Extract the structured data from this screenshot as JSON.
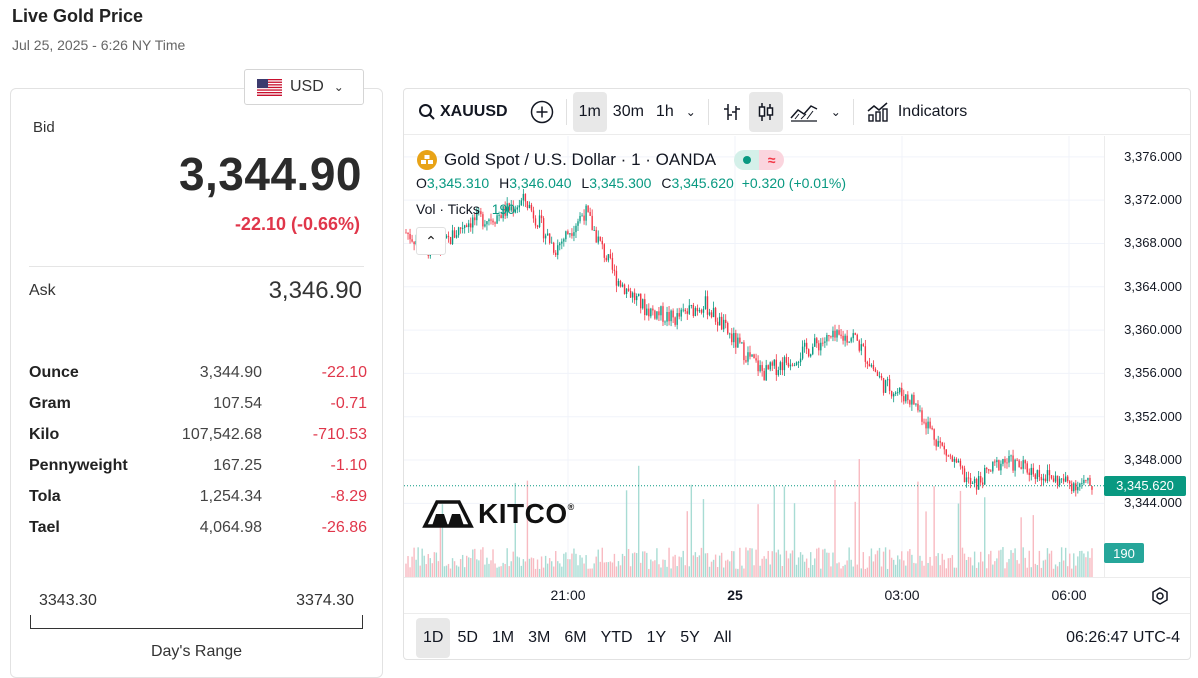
{
  "header": {
    "title": "Live Gold Price",
    "subtitle": "Jul 25, 2025 - 6:26 NY Time"
  },
  "currency": {
    "selected": "USD"
  },
  "price_panel": {
    "bid_label": "Bid",
    "bid_value": "3,344.90",
    "bid_change": "-22.10 (-0.66%)",
    "ask_label": "Ask",
    "ask_value": "3,346.90",
    "units": [
      {
        "name": "Ounce",
        "price": "3,344.90",
        "change": "-22.10"
      },
      {
        "name": "Gram",
        "price": "107.54",
        "change": "-0.71"
      },
      {
        "name": "Kilo",
        "price": "107,542.68",
        "change": "-710.53"
      },
      {
        "name": "Pennyweight",
        "price": "167.25",
        "change": "-1.10"
      },
      {
        "name": "Tola",
        "price": "1,254.34",
        "change": "-8.29"
      },
      {
        "name": "Tael",
        "price": "4,064.98",
        "change": "-26.86"
      }
    ],
    "range_low": "3343.30",
    "range_high": "3374.30",
    "range_label": "Day's Range"
  },
  "chart_toolbar": {
    "symbol": "XAUUSD",
    "intervals": [
      "1m",
      "30m",
      "1h"
    ],
    "selected_interval": "1m",
    "indicators_label": "Indicators"
  },
  "chart_legend": {
    "name": "Gold Spot / U.S. Dollar · 1 · OANDA",
    "o_label": "O",
    "o_value": "3,345.310",
    "h_label": "H",
    "h_value": "3,346.040",
    "l_label": "L",
    "l_value": "3,345.300",
    "c_label": "C",
    "c_value": "3,345.620",
    "change": "+0.320 (+0.01%)",
    "vol_label": "Vol · Ticks",
    "vol_value": "190"
  },
  "chart_data": {
    "type": "line",
    "x": [
      "19:00",
      "19:30",
      "20:00",
      "20:30",
      "21:00",
      "21:30",
      "22:00",
      "22:30",
      "23:00",
      "23:30",
      "00:00",
      "00:30",
      "01:00",
      "01:30",
      "02:00",
      "02:30",
      "03:00",
      "03:30",
      "04:00",
      "04:30",
      "05:00",
      "05:30",
      "06:00",
      "06:26"
    ],
    "series": [
      {
        "values": [
          3369.0,
          3367.0,
          3370.0,
          3370.5,
          3372.0,
          3367.5,
          3371.0,
          3365.0,
          3362.0,
          3361.0,
          3362.5,
          3359.0,
          3356.0,
          3357.5,
          3359.0,
          3359.5,
          3355.0,
          3353.5,
          3349.0,
          3345.5,
          3348.0,
          3347.0,
          3346.0,
          3345.62
        ]
      }
    ],
    "ylim": [
      3342.0,
      3377.0
    ],
    "y_ticks": [
      "3,376.000",
      "3,372.000",
      "3,368.000",
      "3,364.000",
      "3,360.000",
      "3,356.000",
      "3,352.000",
      "3,348.000",
      "3,344.000"
    ],
    "x_ticks": [
      "21:00",
      "25",
      "03:00",
      "06:00"
    ],
    "last_price": "3,345.620",
    "last_volume": "190",
    "grid": true,
    "colors": {
      "up": "#089981",
      "down": "#f23645"
    }
  },
  "watermark": "KITCO",
  "timeframes": [
    "1D",
    "5D",
    "1M",
    "3M",
    "6M",
    "YTD",
    "1Y",
    "5Y",
    "All"
  ],
  "selected_timeframe": "1D",
  "clock": "06:26:47 UTC-4"
}
